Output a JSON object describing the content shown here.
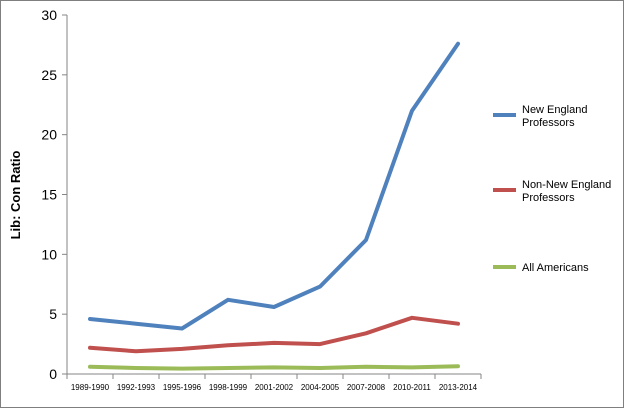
{
  "chart_data": {
    "type": "line",
    "title": "",
    "xlabel": "",
    "ylabel": "Lib: Con Ratio",
    "ylim": [
      0,
      30
    ],
    "yticks": [
      0,
      5,
      10,
      15,
      20,
      25,
      30
    ],
    "grid": false,
    "legend_position": "right",
    "categories": [
      "1989-1990",
      "1992-1993",
      "1995-1996",
      "1998-1999",
      "2001-2002",
      "2004-2005",
      "2007-2008",
      "2010-2011",
      "2013-2014"
    ],
    "series": [
      {
        "name": "New England Professors",
        "legend_lines": [
          "New England",
          "Professors"
        ],
        "color": "#4f81bd",
        "values": [
          4.6,
          4.2,
          3.8,
          6.2,
          5.6,
          7.3,
          11.2,
          22.0,
          27.6
        ]
      },
      {
        "name": "Non-New England Professors",
        "legend_lines": [
          "Non-New England",
          "Professors"
        ],
        "color": "#c0504d",
        "values": [
          2.2,
          1.9,
          2.1,
          2.4,
          2.6,
          2.5,
          3.4,
          4.7,
          4.2
        ]
      },
      {
        "name": "All Americans",
        "legend_lines": [
          "All Americans"
        ],
        "color": "#9bbb59",
        "values": [
          0.6,
          0.5,
          0.45,
          0.5,
          0.55,
          0.5,
          0.6,
          0.55,
          0.65
        ]
      }
    ]
  }
}
